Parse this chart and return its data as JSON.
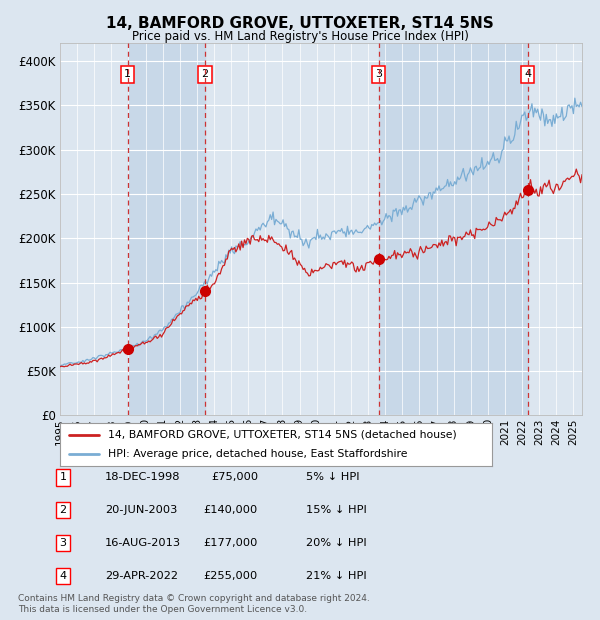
{
  "title": "14, BAMFORD GROVE, UTTOXETER, ST14 5NS",
  "subtitle": "Price paid vs. HM Land Registry's House Price Index (HPI)",
  "xlim": [
    1995.0,
    2025.5
  ],
  "ylim": [
    0,
    420000
  ],
  "yticks": [
    0,
    50000,
    100000,
    150000,
    200000,
    250000,
    300000,
    350000,
    400000
  ],
  "ytick_labels": [
    "£0",
    "£50K",
    "£100K",
    "£150K",
    "£200K",
    "£250K",
    "£300K",
    "£350K",
    "£400K"
  ],
  "xtick_years": [
    1995,
    1996,
    1997,
    1998,
    1999,
    2000,
    2001,
    2002,
    2003,
    2004,
    2005,
    2006,
    2007,
    2008,
    2009,
    2010,
    2011,
    2012,
    2013,
    2014,
    2015,
    2016,
    2017,
    2018,
    2019,
    2020,
    2021,
    2022,
    2023,
    2024,
    2025
  ],
  "background_color": "#dce6f0",
  "plot_bg_color": "#dce6f0",
  "grid_color": "#ffffff",
  "hpi_line_color": "#7aadd4",
  "price_line_color": "#cc2222",
  "sale_marker_color": "#cc0000",
  "shade_color": "#c8d8e8",
  "sale_events": [
    {
      "num": 1,
      "year": 1998.96,
      "price": 75000,
      "label": "18-DEC-1998",
      "price_str": "£75,000",
      "pct": "5% ↓ HPI"
    },
    {
      "num": 2,
      "year": 2003.47,
      "price": 140000,
      "label": "20-JUN-2003",
      "price_str": "£140,000",
      "pct": "15% ↓ HPI"
    },
    {
      "num": 3,
      "year": 2013.62,
      "price": 177000,
      "label": "16-AUG-2013",
      "price_str": "£177,000",
      "pct": "20% ↓ HPI"
    },
    {
      "num": 4,
      "year": 2022.33,
      "price": 255000,
      "label": "29-APR-2022",
      "price_str": "£255,000",
      "pct": "21% ↓ HPI"
    }
  ],
  "legend_line1": "14, BAMFORD GROVE, UTTOXETER, ST14 5NS (detached house)",
  "legend_line2": "HPI: Average price, detached house, East Staffordshire",
  "footer1": "Contains HM Land Registry data © Crown copyright and database right 2024.",
  "footer2": "This data is licensed under the Open Government Licence v3.0.",
  "hpi_anchors": [
    [
      1995.0,
      57000
    ],
    [
      1996.0,
      60000
    ],
    [
      1997.0,
      65000
    ],
    [
      1998.0,
      70000
    ],
    [
      1999.0,
      76000
    ],
    [
      2000.0,
      85000
    ],
    [
      2001.0,
      97000
    ],
    [
      2002.0,
      118000
    ],
    [
      2003.0,
      138000
    ],
    [
      2004.0,
      162000
    ],
    [
      2005.0,
      185000
    ],
    [
      2006.0,
      200000
    ],
    [
      2007.0,
      218000
    ],
    [
      2007.5,
      225000
    ],
    [
      2008.5,
      208000
    ],
    [
      2009.5,
      198000
    ],
    [
      2010.5,
      205000
    ],
    [
      2011.5,
      207000
    ],
    [
      2012.5,
      208000
    ],
    [
      2013.5,
      215000
    ],
    [
      2014.5,
      228000
    ],
    [
      2015.5,
      238000
    ],
    [
      2016.5,
      248000
    ],
    [
      2017.5,
      260000
    ],
    [
      2018.5,
      272000
    ],
    [
      2019.5,
      278000
    ],
    [
      2020.5,
      290000
    ],
    [
      2021.5,
      315000
    ],
    [
      2022.0,
      335000
    ],
    [
      2022.5,
      345000
    ],
    [
      2023.0,
      342000
    ],
    [
      2023.5,
      335000
    ],
    [
      2024.0,
      332000
    ],
    [
      2024.5,
      340000
    ],
    [
      2025.0,
      350000
    ]
  ],
  "price_anchors": [
    [
      1995.0,
      55000
    ],
    [
      1996.0,
      58000
    ],
    [
      1997.0,
      62000
    ],
    [
      1998.0,
      68000
    ],
    [
      1998.96,
      75000
    ],
    [
      2000.0,
      82000
    ],
    [
      2001.0,
      92000
    ],
    [
      2002.0,
      115000
    ],
    [
      2003.47,
      140000
    ],
    [
      2004.0,
      148000
    ],
    [
      2005.0,
      188000
    ],
    [
      2006.0,
      198000
    ],
    [
      2007.0,
      200000
    ],
    [
      2007.5,
      198000
    ],
    [
      2008.5,
      183000
    ],
    [
      2009.5,
      160000
    ],
    [
      2010.5,
      168000
    ],
    [
      2011.5,
      172000
    ],
    [
      2012.5,
      165000
    ],
    [
      2013.0,
      173000
    ],
    [
      2013.62,
      177000
    ],
    [
      2014.5,
      180000
    ],
    [
      2015.5,
      185000
    ],
    [
      2016.5,
      188000
    ],
    [
      2017.5,
      196000
    ],
    [
      2018.5,
      202000
    ],
    [
      2019.5,
      207000
    ],
    [
      2020.5,
      218000
    ],
    [
      2021.5,
      235000
    ],
    [
      2022.33,
      255000
    ],
    [
      2022.5,
      258000
    ],
    [
      2023.0,
      252000
    ],
    [
      2023.5,
      258000
    ],
    [
      2024.0,
      255000
    ],
    [
      2024.5,
      265000
    ],
    [
      2025.0,
      270000
    ]
  ]
}
